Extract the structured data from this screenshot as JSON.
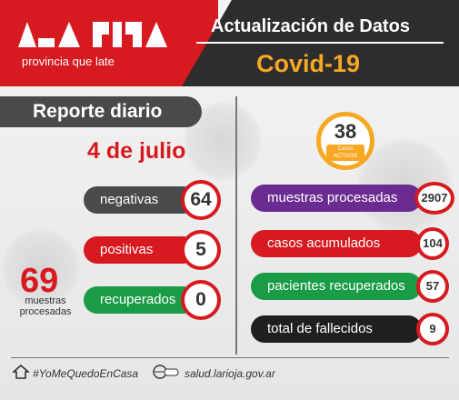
{
  "header": {
    "tagline": "provincia que late",
    "title": "Actualización de Datos",
    "subtitle": "Covid-19"
  },
  "report": {
    "title": "Reporte diario",
    "date": "4 de julio",
    "stats": [
      {
        "label": "negativas",
        "value": "64",
        "color": "#4a4a4a"
      },
      {
        "label": "positivas",
        "value": "5",
        "color": "#d71920"
      },
      {
        "label": "recuperados",
        "value": "0",
        "color": "#1a9b46"
      }
    ],
    "processed": {
      "value": "69",
      "label_line1": "muestras",
      "label_line2": "procesadas"
    }
  },
  "active": {
    "value": "38",
    "label_line1": "Casos",
    "label_line2": "ACTIVOS",
    "color": "#f7a823"
  },
  "totals": [
    {
      "label": "muestras procesadas",
      "value": "2907",
      "color": "#6b2c91"
    },
    {
      "label": "casos acumulados",
      "value": "104",
      "color": "#d71920"
    },
    {
      "label": "pacientes recuperados",
      "value": "57",
      "color": "#1a9b46"
    },
    {
      "label": "total de fallecidos",
      "value": "9",
      "color": "#1f1f1f"
    }
  ],
  "footer": {
    "hashtag": "#YoMeQuedoEnCasa",
    "website": "salud.larioja.gov.ar",
    "house_icon": "house-icon",
    "web_icon": "www-icon"
  }
}
